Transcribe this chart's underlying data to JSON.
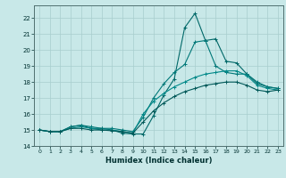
{
  "title": "",
  "xlabel": "Humidex (Indice chaleur)",
  "background_color": "#c8e8e8",
  "grid_color": "#a8cece",
  "line_color1": "#006868",
  "line_color2": "#007878",
  "line_color3": "#008888",
  "line_color4": "#005858",
  "xlim": [
    -0.5,
    23.5
  ],
  "ylim": [
    14,
    22.8
  ],
  "yticks": [
    14,
    15,
    16,
    17,
    18,
    19,
    20,
    21,
    22
  ],
  "xticks": [
    0,
    1,
    2,
    3,
    4,
    5,
    6,
    7,
    8,
    9,
    10,
    11,
    12,
    13,
    14,
    15,
    16,
    17,
    18,
    19,
    20,
    21,
    22,
    23
  ],
  "series1_x": [
    0,
    1,
    2,
    3,
    4,
    5,
    6,
    7,
    8,
    9,
    10,
    11,
    12,
    13,
    14,
    15,
    16,
    17,
    18,
    19,
    20,
    21,
    22,
    23
  ],
  "series1_y": [
    15.0,
    14.9,
    14.9,
    15.2,
    15.3,
    15.1,
    15.1,
    15.0,
    14.8,
    14.75,
    14.75,
    15.9,
    17.2,
    18.2,
    21.4,
    22.3,
    20.6,
    20.7,
    19.3,
    19.2,
    18.5,
    17.9,
    17.7,
    17.6
  ],
  "series2_x": [
    0,
    1,
    2,
    3,
    4,
    5,
    6,
    7,
    8,
    9,
    10,
    11,
    12,
    13,
    14,
    15,
    16,
    17,
    18,
    19,
    20,
    21,
    22,
    23
  ],
  "series2_y": [
    15.0,
    14.9,
    14.9,
    15.2,
    15.3,
    15.2,
    15.1,
    15.1,
    15.0,
    14.9,
    15.8,
    17.0,
    17.9,
    18.6,
    19.1,
    20.5,
    20.6,
    19.0,
    18.6,
    18.5,
    18.5,
    18.0,
    17.7,
    17.6
  ],
  "series3_x": [
    0,
    1,
    2,
    3,
    4,
    5,
    6,
    7,
    8,
    9,
    10,
    11,
    12,
    13,
    14,
    15,
    16,
    17,
    18,
    19,
    20,
    21,
    22,
    23
  ],
  "series3_y": [
    15.0,
    14.9,
    14.9,
    15.1,
    15.2,
    15.1,
    15.0,
    15.0,
    14.9,
    14.8,
    16.0,
    16.8,
    17.3,
    17.7,
    18.0,
    18.3,
    18.5,
    18.6,
    18.7,
    18.7,
    18.4,
    17.8,
    17.6,
    17.5
  ],
  "series4_x": [
    0,
    1,
    2,
    3,
    4,
    5,
    6,
    7,
    8,
    9,
    10,
    11,
    12,
    13,
    14,
    15,
    16,
    17,
    18,
    19,
    20,
    21,
    22,
    23
  ],
  "series4_y": [
    15.0,
    14.9,
    14.9,
    15.1,
    15.1,
    15.0,
    15.0,
    14.95,
    14.9,
    14.8,
    15.5,
    16.2,
    16.7,
    17.1,
    17.4,
    17.6,
    17.8,
    17.9,
    18.0,
    18.0,
    17.8,
    17.5,
    17.4,
    17.5
  ]
}
